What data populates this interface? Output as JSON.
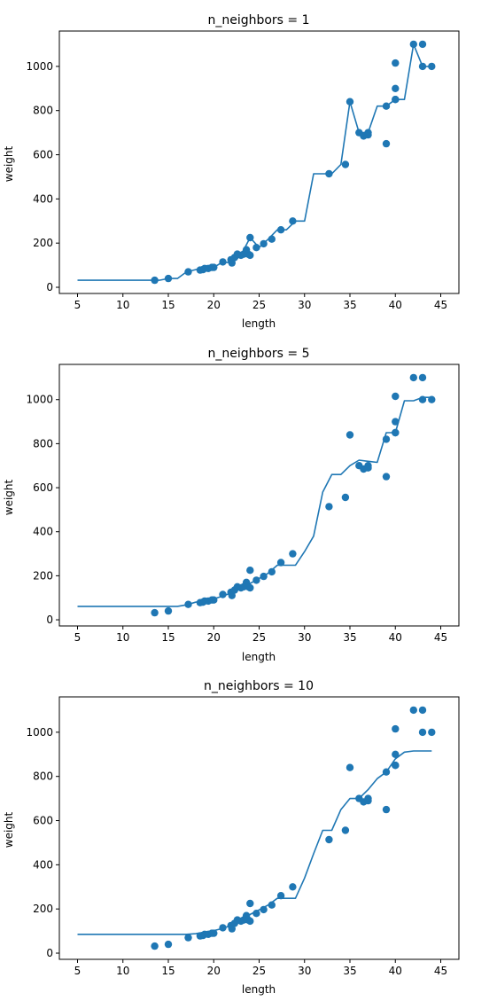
{
  "colors": {
    "series": "#1f77b4",
    "axis": "#000000",
    "background": "#ffffff"
  },
  "chart_data": [
    {
      "type": "line",
      "title": "n_neighbors = 1",
      "xlabel": "length",
      "ylabel": "weight",
      "xlim": [
        3,
        47
      ],
      "ylim": [
        -28,
        1160
      ],
      "xticks": [
        5,
        10,
        15,
        20,
        25,
        30,
        35,
        40,
        45
      ],
      "yticks": [
        0,
        200,
        400,
        600,
        800,
        1000
      ],
      "grid": false,
      "scatter": {
        "x": [
          13.5,
          15.0,
          17.2,
          18.5,
          18.8,
          19.0,
          19.4,
          19.8,
          20.0,
          21.0,
          21.9,
          22.0,
          22.3,
          22.6,
          23.0,
          23.3,
          23.6,
          23.8,
          24.0,
          24.0,
          24.7,
          25.5,
          26.4,
          27.4,
          28.7,
          32.7,
          34.5,
          35.0,
          36.0,
          36.5,
          37.0,
          37.0,
          39.0,
          39.0,
          40.0,
          40.0,
          40.0,
          40.0,
          42.0,
          43.0,
          43.0,
          44.0
        ],
        "y": [
          32,
          40,
          70,
          78,
          80,
          85,
          85,
          90,
          90,
          115,
          125,
          110,
          135,
          150,
          145,
          150,
          170,
          150,
          225,
          145,
          180,
          197,
          218,
          260,
          300,
          514,
          556,
          840,
          700,
          685,
          700,
          690,
          820,
          650,
          850,
          900,
          1015,
          850,
          1100,
          1000,
          1100,
          1000
        ]
      },
      "line": {
        "x": [
          5,
          6,
          7,
          8,
          9,
          10,
          11,
          12,
          13,
          14,
          15,
          16,
          17,
          18,
          19,
          20,
          21,
          22,
          23,
          24,
          25,
          26,
          27,
          28,
          29,
          30,
          31,
          32,
          33,
          34,
          35,
          36,
          37,
          38,
          39,
          40,
          41,
          42,
          43,
          44
        ],
        "y": [
          32,
          32,
          32,
          32,
          32,
          32,
          32,
          32,
          32,
          32,
          40,
          40,
          70,
          80,
          85,
          90,
          115,
          110,
          145,
          225,
          180,
          218,
          260,
          260,
          300,
          300,
          514,
          514,
          514,
          556,
          840,
          700,
          700,
          820,
          820,
          850,
          850,
          1100,
          1000,
          1000
        ]
      }
    },
    {
      "type": "line",
      "title": "n_neighbors = 5",
      "xlabel": "length",
      "ylabel": "weight",
      "xlim": [
        3,
        47
      ],
      "ylim": [
        -28,
        1160
      ],
      "xticks": [
        5,
        10,
        15,
        20,
        25,
        30,
        35,
        40,
        45
      ],
      "yticks": [
        0,
        200,
        400,
        600,
        800,
        1000
      ],
      "grid": false,
      "scatter": {
        "x": [
          13.5,
          15.0,
          17.2,
          18.5,
          18.8,
          19.0,
          19.4,
          19.8,
          20.0,
          21.0,
          21.9,
          22.0,
          22.3,
          22.6,
          23.0,
          23.3,
          23.6,
          23.8,
          24.0,
          24.0,
          24.7,
          25.5,
          26.4,
          27.4,
          28.7,
          32.7,
          34.5,
          35.0,
          36.0,
          36.5,
          37.0,
          37.0,
          39.0,
          39.0,
          40.0,
          40.0,
          40.0,
          40.0,
          42.0,
          43.0,
          43.0,
          44.0
        ],
        "y": [
          32,
          40,
          70,
          78,
          80,
          85,
          85,
          90,
          90,
          115,
          125,
          110,
          135,
          150,
          145,
          150,
          170,
          150,
          225,
          145,
          180,
          197,
          218,
          260,
          300,
          514,
          556,
          840,
          700,
          685,
          700,
          690,
          820,
          650,
          850,
          900,
          1015,
          850,
          1100,
          1000,
          1100,
          1000
        ]
      },
      "line": {
        "x": [
          5,
          6,
          7,
          8,
          9,
          10,
          11,
          12,
          13,
          14,
          15,
          16,
          17,
          18,
          19,
          20,
          21,
          22,
          23,
          24,
          25,
          26,
          27,
          28,
          29,
          30,
          31,
          32,
          33,
          34,
          35,
          36,
          37,
          38,
          39,
          40,
          41,
          42,
          43,
          44
        ],
        "y": [
          61,
          61,
          61,
          61,
          61,
          61,
          61,
          61,
          61,
          61,
          61,
          61,
          68,
          80,
          87,
          95,
          108,
          123,
          144,
          165,
          188,
          212,
          248,
          248,
          248,
          310,
          380,
          580,
          660,
          660,
          700,
          725,
          720,
          715,
          850,
          850,
          995,
          995,
          1010,
          1010
        ]
      }
    },
    {
      "type": "line",
      "title": "n_neighbors = 10",
      "xlabel": "length",
      "ylabel": "weight",
      "xlim": [
        3,
        47
      ],
      "ylim": [
        -28,
        1160
      ],
      "xticks": [
        5,
        10,
        15,
        20,
        25,
        30,
        35,
        40,
        45
      ],
      "yticks": [
        0,
        200,
        400,
        600,
        800,
        1000
      ],
      "grid": false,
      "scatter": {
        "x": [
          13.5,
          15.0,
          17.2,
          18.5,
          18.8,
          19.0,
          19.4,
          19.8,
          20.0,
          21.0,
          21.9,
          22.0,
          22.3,
          22.6,
          23.0,
          23.3,
          23.6,
          23.8,
          24.0,
          24.0,
          24.7,
          25.5,
          26.4,
          27.4,
          28.7,
          32.7,
          34.5,
          35.0,
          36.0,
          36.5,
          37.0,
          37.0,
          39.0,
          39.0,
          40.0,
          40.0,
          40.0,
          40.0,
          42.0,
          43.0,
          43.0,
          44.0
        ],
        "y": [
          32,
          40,
          70,
          78,
          80,
          85,
          85,
          90,
          90,
          115,
          125,
          110,
          135,
          150,
          145,
          150,
          170,
          150,
          225,
          145,
          180,
          197,
          218,
          260,
          300,
          514,
          556,
          840,
          700,
          685,
          700,
          690,
          820,
          650,
          850,
          900,
          1015,
          850,
          1100,
          1000,
          1100,
          1000
        ]
      },
      "line": {
        "x": [
          5,
          6,
          7,
          8,
          9,
          10,
          11,
          12,
          13,
          14,
          15,
          16,
          17,
          18,
          19,
          20,
          21,
          22,
          23,
          24,
          25,
          26,
          27,
          28,
          29,
          30,
          31,
          32,
          33,
          34,
          35,
          36,
          37,
          38,
          39,
          40,
          41,
          42,
          43,
          44
        ],
        "y": [
          85,
          85,
          85,
          85,
          85,
          85,
          85,
          85,
          85,
          85,
          85,
          85,
          85,
          88,
          95,
          102,
          112,
          127,
          150,
          175,
          196,
          218,
          248,
          248,
          248,
          340,
          450,
          556,
          556,
          650,
          700,
          700,
          740,
          790,
          820,
          880,
          910,
          915,
          915,
          915
        ]
      }
    }
  ]
}
